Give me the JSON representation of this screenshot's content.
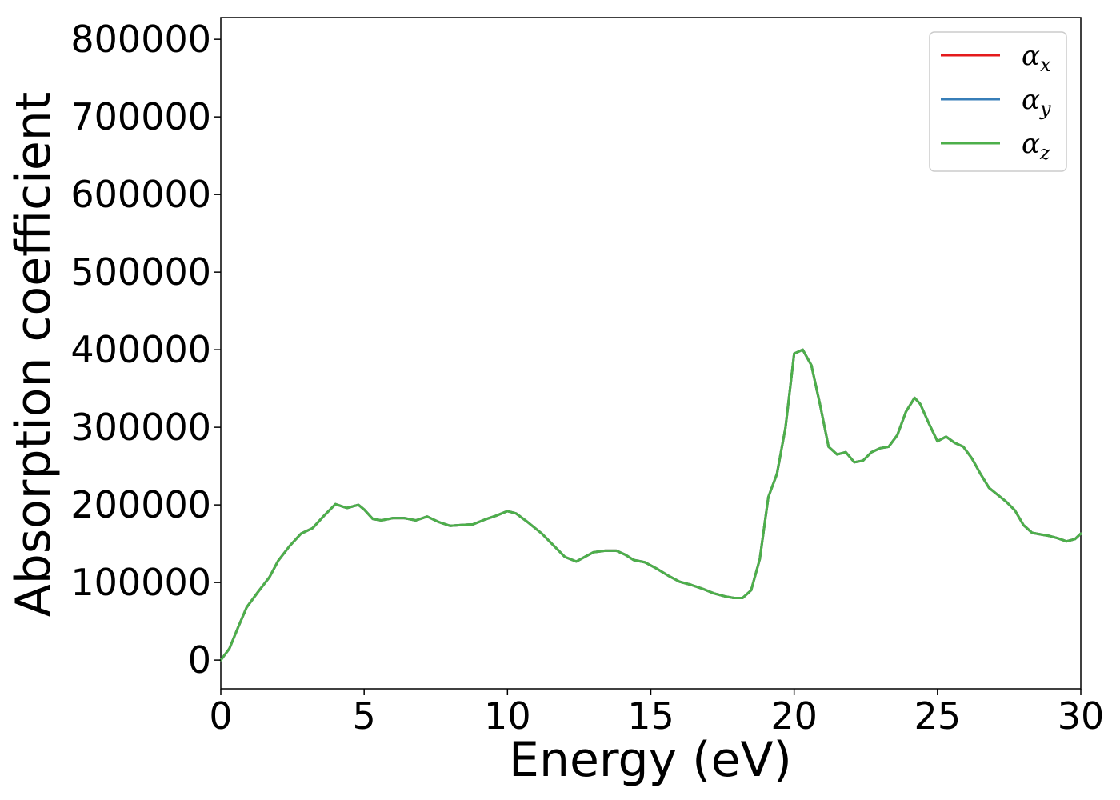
{
  "chart_data": {
    "type": "line",
    "title": "",
    "xlabel": "Energy (eV)",
    "ylabel": "Absorption coefficient",
    "xlim": [
      0,
      30
    ],
    "ylim": [
      -37000,
      828000
    ],
    "xticks": [
      0,
      5,
      10,
      15,
      20,
      25,
      30
    ],
    "yticks": [
      0,
      100000,
      200000,
      300000,
      400000,
      500000,
      600000,
      700000,
      800000
    ],
    "grid": false,
    "legend_position": "top-right",
    "x": [
      0,
      0.3,
      0.6,
      0.9,
      1.3,
      1.7,
      2.0,
      2.4,
      2.8,
      3.2,
      3.6,
      4.0,
      4.4,
      4.8,
      5.0,
      5.3,
      5.6,
      6.0,
      6.4,
      6.8,
      7.2,
      7.6,
      8.0,
      8.4,
      8.8,
      9.2,
      9.6,
      10.0,
      10.3,
      10.7,
      11.2,
      11.6,
      12.0,
      12.4,
      12.7,
      13.0,
      13.4,
      13.8,
      14.1,
      14.4,
      14.8,
      15.2,
      15.6,
      16.0,
      16.4,
      16.8,
      17.2,
      17.6,
      17.9,
      18.2,
      18.5,
      18.8,
      19.1,
      19.4,
      19.7,
      20.0,
      20.3,
      20.6,
      20.9,
      21.2,
      21.5,
      21.8,
      22.1,
      22.4,
      22.7,
      23.0,
      23.3,
      23.6,
      23.9,
      24.2,
      24.4,
      24.7,
      25.0,
      25.3,
      25.6,
      25.9,
      26.2,
      26.5,
      26.8,
      27.1,
      27.4,
      27.7,
      28.0,
      28.3,
      28.6,
      28.9,
      29.2,
      29.5,
      29.8,
      30.0
    ],
    "series": [
      {
        "name": "αx",
        "color": "#e41a1c",
        "values": [
          0,
          15000,
          42000,
          68000,
          88000,
          107000,
          128000,
          147000,
          163000,
          170000,
          186000,
          201000,
          196000,
          200000,
          194000,
          182000,
          180000,
          183000,
          183000,
          180000,
          185000,
          178000,
          173000,
          174000,
          175000,
          181000,
          186000,
          192000,
          189000,
          178000,
          163000,
          148000,
          133000,
          127000,
          133000,
          139000,
          141000,
          141000,
          136000,
          129000,
          126000,
          118000,
          109000,
          101000,
          97000,
          92000,
          86000,
          82000,
          80000,
          80000,
          90000,
          130000,
          210000,
          240000,
          300000,
          395000,
          400000,
          380000,
          330000,
          275000,
          265000,
          268000,
          255000,
          257000,
          268000,
          273000,
          275000,
          290000,
          320000,
          338000,
          330000,
          305000,
          282000,
          288000,
          280000,
          275000,
          260000,
          240000,
          222000,
          213000,
          204000,
          193000,
          174000,
          164000,
          162000,
          160000,
          157000,
          153000,
          156000,
          163000
        ]
      },
      {
        "name": "αy",
        "color": "#377eb8",
        "values": [
          0,
          15000,
          42000,
          68000,
          88000,
          107000,
          128000,
          147000,
          163000,
          170000,
          186000,
          201000,
          196000,
          200000,
          194000,
          182000,
          180000,
          183000,
          183000,
          180000,
          185000,
          178000,
          173000,
          174000,
          175000,
          181000,
          186000,
          192000,
          189000,
          178000,
          163000,
          148000,
          133000,
          127000,
          133000,
          139000,
          141000,
          141000,
          136000,
          129000,
          126000,
          118000,
          109000,
          101000,
          97000,
          92000,
          86000,
          82000,
          80000,
          80000,
          90000,
          130000,
          210000,
          240000,
          300000,
          395000,
          400000,
          380000,
          330000,
          275000,
          265000,
          268000,
          255000,
          257000,
          268000,
          273000,
          275000,
          290000,
          320000,
          338000,
          330000,
          305000,
          282000,
          288000,
          280000,
          275000,
          260000,
          240000,
          222000,
          213000,
          204000,
          193000,
          174000,
          164000,
          162000,
          160000,
          157000,
          153000,
          156000,
          163000
        ]
      },
      {
        "name": "αz",
        "color": "#4daf4a",
        "values": [
          0,
          15000,
          42000,
          68000,
          88000,
          107000,
          128000,
          147000,
          163000,
          170000,
          186000,
          201000,
          196000,
          200000,
          194000,
          182000,
          180000,
          183000,
          183000,
          180000,
          185000,
          178000,
          173000,
          174000,
          175000,
          181000,
          186000,
          192000,
          189000,
          178000,
          163000,
          148000,
          133000,
          127000,
          133000,
          139000,
          141000,
          141000,
          136000,
          129000,
          126000,
          118000,
          109000,
          101000,
          97000,
          92000,
          86000,
          82000,
          80000,
          80000,
          90000,
          130000,
          210000,
          240000,
          300000,
          395000,
          400000,
          380000,
          330000,
          275000,
          265000,
          268000,
          255000,
          257000,
          268000,
          273000,
          275000,
          290000,
          320000,
          338000,
          330000,
          305000,
          282000,
          288000,
          280000,
          275000,
          260000,
          240000,
          222000,
          213000,
          204000,
          193000,
          174000,
          164000,
          162000,
          160000,
          157000,
          153000,
          156000,
          163000
        ]
      }
    ],
    "legend": [
      {
        "symbol": "α",
        "sub": "x",
        "color": "#e41a1c"
      },
      {
        "symbol": "α",
        "sub": "y",
        "color": "#377eb8"
      },
      {
        "symbol": "α",
        "sub": "z",
        "color": "#4daf4a"
      }
    ]
  }
}
